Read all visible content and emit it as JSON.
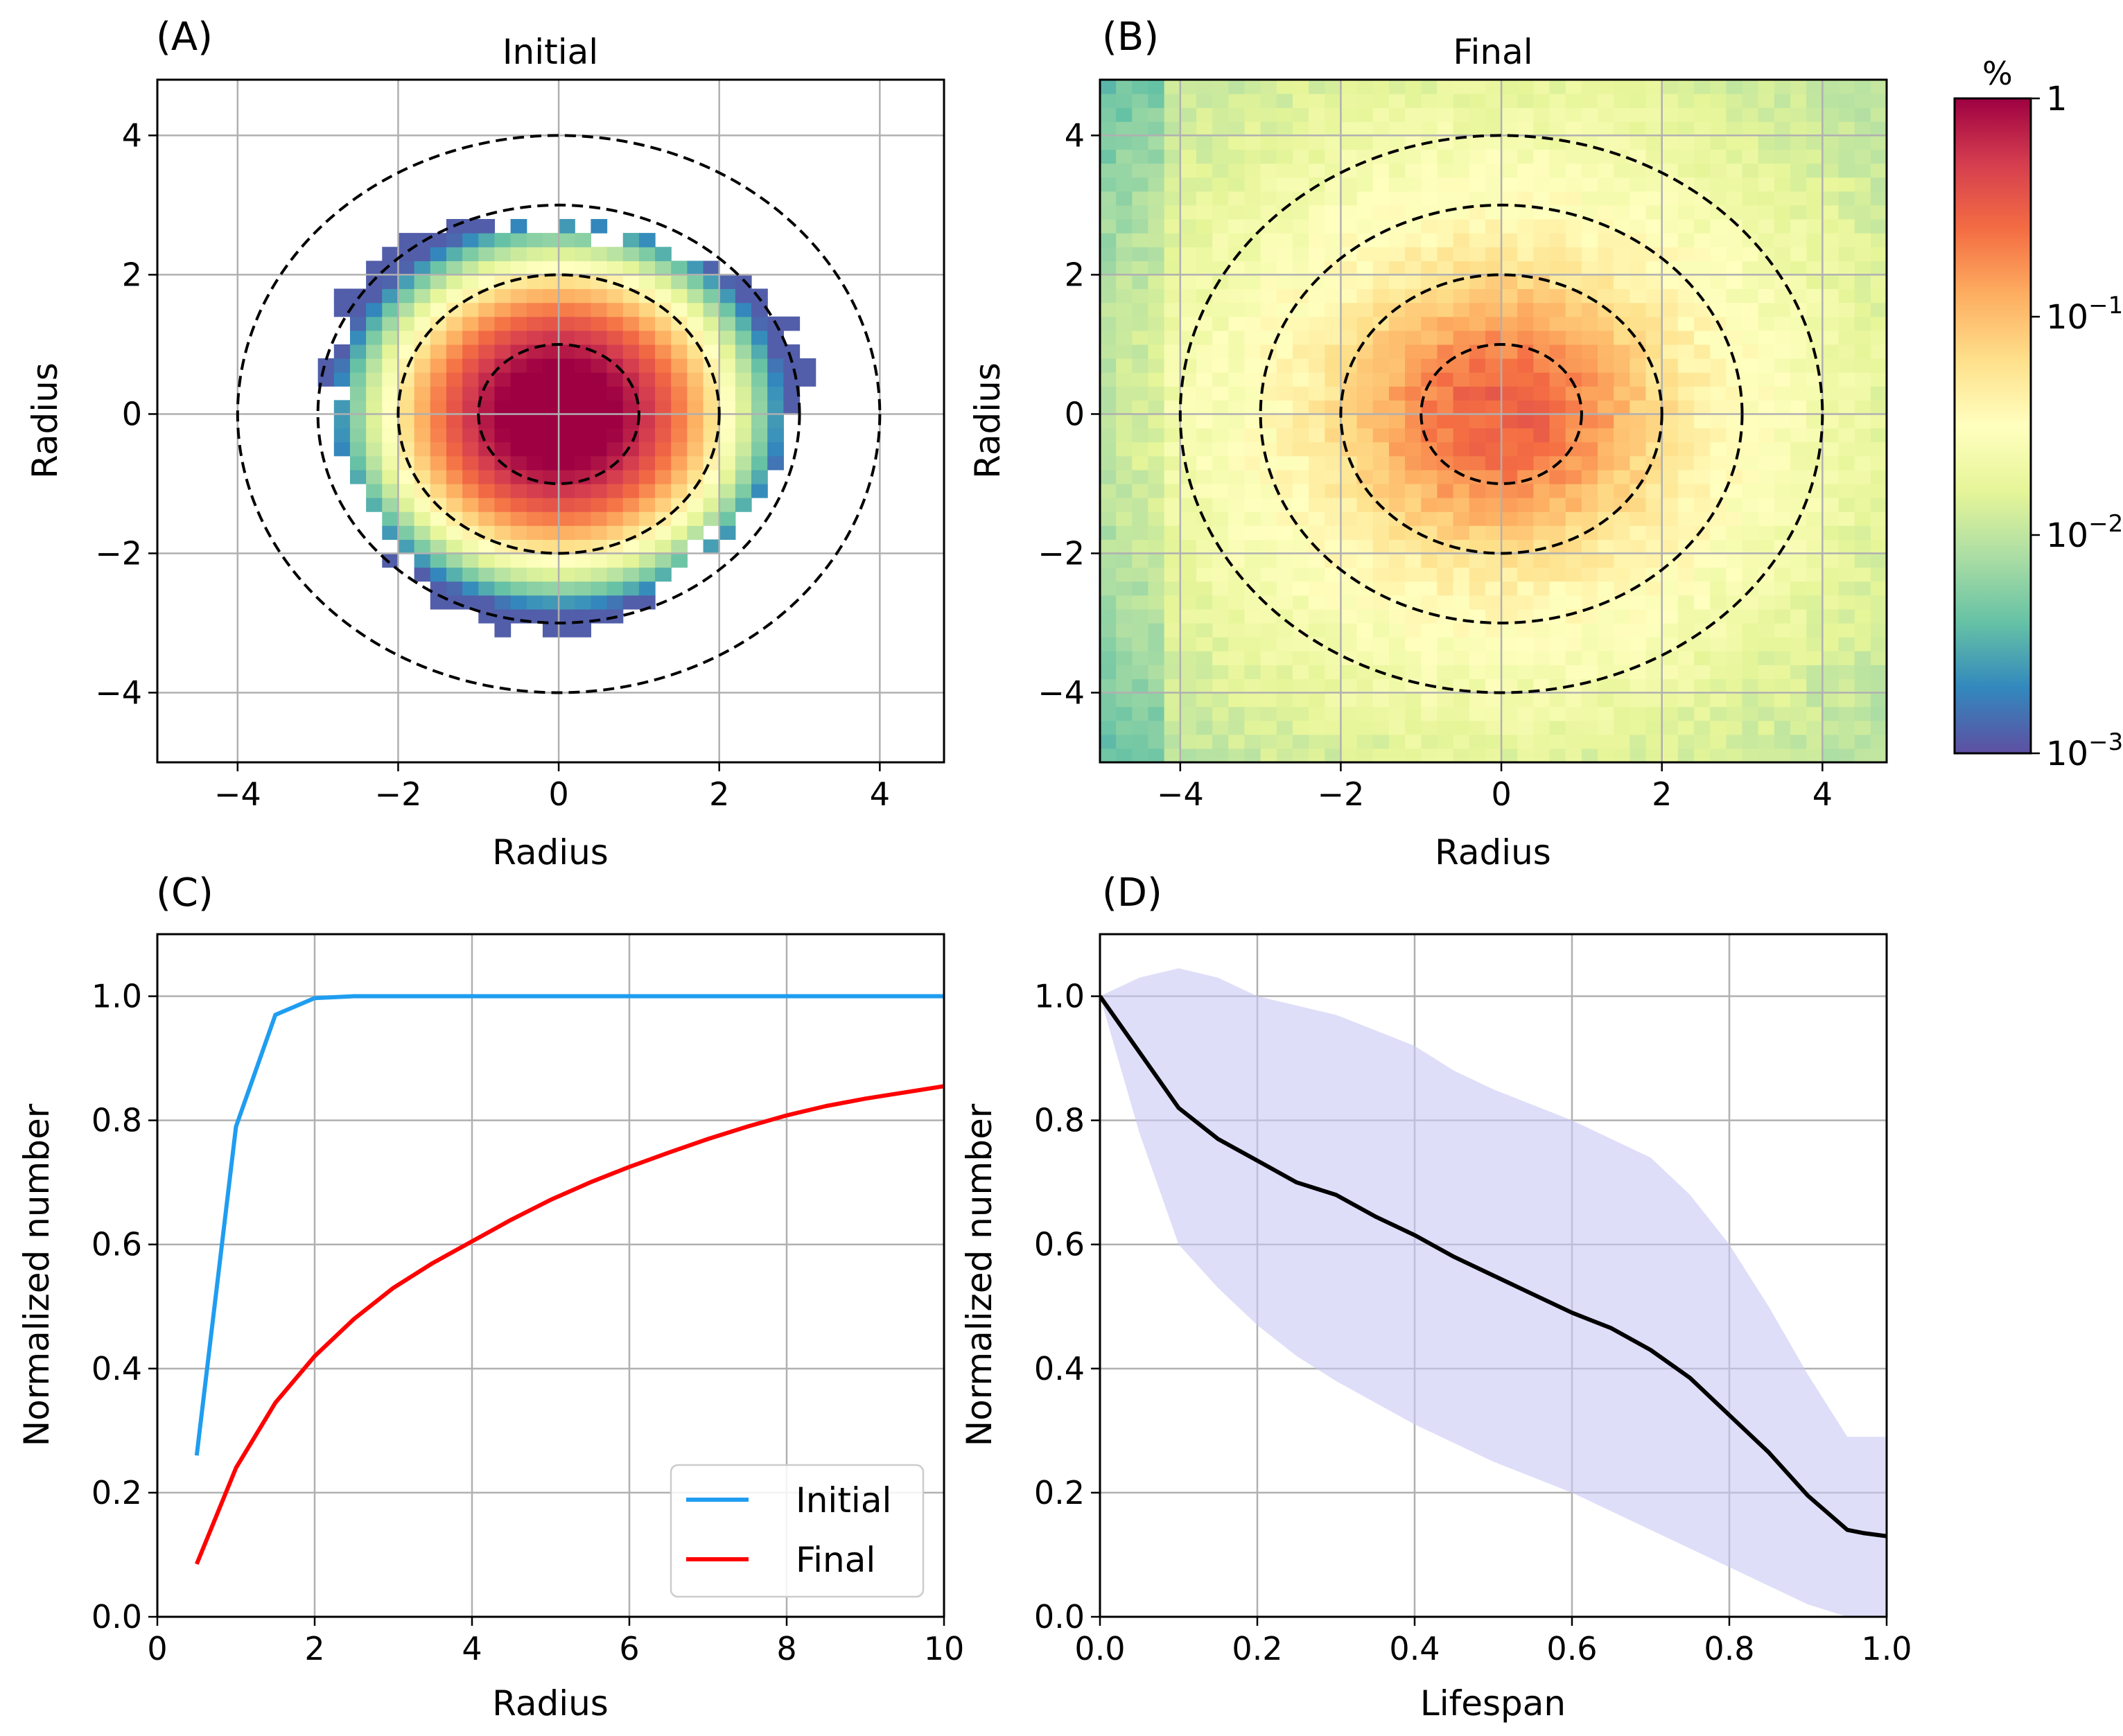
{
  "panels": {
    "A": {
      "letter": "(A)",
      "title": "Initial",
      "xlabel": "Radius",
      "ylabel": "Radius"
    },
    "B": {
      "letter": "(B)",
      "title": "Final",
      "xlabel": "Radius",
      "ylabel": "Radius"
    },
    "C": {
      "letter": "(C)",
      "xlabel": "Radius",
      "ylabel": "Normalized number"
    },
    "D": {
      "letter": "(D)",
      "xlabel": "Lifespan",
      "ylabel": "Normalized number"
    }
  },
  "colorbar": {
    "unit": "%",
    "ticks": [
      {
        "base": "1",
        "exp": ""
      },
      {
        "base": "10",
        "exp": "−1"
      },
      {
        "base": "10",
        "exp": "−2"
      },
      {
        "base": "10",
        "exp": "−3"
      }
    ],
    "colormap": "Spectral_r",
    "colors": [
      "#5e4fa2",
      "#3288bd",
      "#66c2a5",
      "#abdda4",
      "#e6f598",
      "#ffffbf",
      "#fee08b",
      "#fdae61",
      "#f46d43",
      "#d53e4f",
      "#9e0142"
    ]
  },
  "chart_data": [
    {
      "id": "A",
      "type": "heatmap",
      "title": "Initial",
      "xlabel": "Radius",
      "ylabel": "Radius",
      "xlim": [
        -5,
        4.8
      ],
      "ylim": [
        -5,
        4.8
      ],
      "xticks": [
        -4,
        -2,
        0,
        2,
        4
      ],
      "yticks": [
        -4,
        -2,
        0,
        2,
        4
      ],
      "xtick_labels": [
        "−4",
        "−2",
        "0",
        "2",
        "4"
      ],
      "ytick_labels": [
        "−4",
        "−2",
        "0",
        "2",
        "4"
      ],
      "grid": true,
      "color_scale": "log",
      "color_range_percent": [
        0.001,
        1
      ],
      "distribution": {
        "shape": "gaussian",
        "center": [
          0,
          0
        ],
        "sigma": 0.75,
        "peak_percent": 1,
        "support_radius": 2.9
      },
      "reference_circles_radius": [
        1,
        2,
        3,
        4
      ]
    },
    {
      "id": "B",
      "type": "heatmap",
      "title": "Final",
      "xlabel": "Radius",
      "ylabel": "Radius",
      "xlim": [
        -5,
        4.8
      ],
      "ylim": [
        -5,
        4.8
      ],
      "xticks": [
        -4,
        -2,
        0,
        2,
        4
      ],
      "yticks": [
        -4,
        -2,
        0,
        2,
        4
      ],
      "xtick_labels": [
        "−4",
        "−2",
        "0",
        "2",
        "4"
      ],
      "ytick_labels": [
        "−4",
        "−2",
        "0",
        "2",
        "4"
      ],
      "grid": true,
      "color_scale": "log",
      "color_range_percent": [
        0.001,
        1
      ],
      "distribution": {
        "shape": "gaussian-core-with-wide-halo",
        "center": [
          0,
          0
        ],
        "peak_percent": 0.3,
        "halo_percent": 0.01
      },
      "reference_circles_radius": [
        1,
        2,
        3,
        4
      ]
    },
    {
      "id": "C",
      "type": "line",
      "xlabel": "Radius",
      "ylabel": "Normalized number",
      "xlim": [
        0,
        10
      ],
      "ylim": [
        0,
        1.1
      ],
      "xticks": [
        0,
        2,
        4,
        6,
        8,
        10
      ],
      "yticks": [
        0.0,
        0.2,
        0.4,
        0.6,
        0.8,
        1.0
      ],
      "xtick_labels": [
        "0",
        "2",
        "4",
        "6",
        "8",
        "10"
      ],
      "ytick_labels": [
        "0.0",
        "0.2",
        "0.4",
        "0.6",
        "0.8",
        "1.0"
      ],
      "grid": true,
      "legend_position": "bottom-right",
      "series": [
        {
          "name": "Initial",
          "color": "#1f9df0",
          "x": [
            0.5,
            1.0,
            1.5,
            2.0,
            2.5,
            3,
            4,
            5,
            6,
            7,
            8,
            9,
            10
          ],
          "y": [
            0.26,
            0.79,
            0.97,
            0.997,
            1.0,
            1.0,
            1.0,
            1.0,
            1.0,
            1.0,
            1.0,
            1.0,
            1.0
          ]
        },
        {
          "name": "Final",
          "color": "#ff0000",
          "x": [
            0.5,
            1.0,
            1.5,
            2.0,
            2.5,
            3.0,
            3.5,
            4.0,
            4.5,
            5.0,
            5.5,
            6.0,
            6.5,
            7.0,
            7.5,
            8.0,
            8.5,
            9.0,
            9.5,
            10.0
          ],
          "y": [
            0.085,
            0.24,
            0.345,
            0.42,
            0.48,
            0.53,
            0.57,
            0.605,
            0.64,
            0.672,
            0.7,
            0.725,
            0.748,
            0.77,
            0.79,
            0.808,
            0.823,
            0.835,
            0.845,
            0.855
          ]
        }
      ]
    },
    {
      "id": "D",
      "type": "area",
      "xlabel": "Lifespan",
      "ylabel": "Normalized number",
      "xlim": [
        0,
        1
      ],
      "ylim": [
        0,
        1.1
      ],
      "xticks": [
        0.0,
        0.2,
        0.4,
        0.6,
        0.8,
        1.0
      ],
      "yticks": [
        0.0,
        0.2,
        0.4,
        0.6,
        0.8,
        1.0
      ],
      "xtick_labels": [
        "0.0",
        "0.2",
        "0.4",
        "0.6",
        "0.8",
        "1.0"
      ],
      "ytick_labels": [
        "0.0",
        "0.2",
        "0.4",
        "0.6",
        "0.8",
        "1.0"
      ],
      "grid": true,
      "mean": {
        "color": "#000000",
        "x": [
          0.0,
          0.05,
          0.1,
          0.15,
          0.2,
          0.25,
          0.3,
          0.35,
          0.4,
          0.45,
          0.5,
          0.55,
          0.6,
          0.65,
          0.7,
          0.75,
          0.8,
          0.85,
          0.9,
          0.95,
          0.97,
          1.0
        ],
        "y": [
          1.0,
          0.91,
          0.82,
          0.77,
          0.735,
          0.7,
          0.68,
          0.645,
          0.615,
          0.58,
          0.55,
          0.52,
          0.49,
          0.465,
          0.43,
          0.385,
          0.325,
          0.265,
          0.195,
          0.14,
          0.135,
          0.13
        ]
      },
      "band": {
        "color": "#c8c8f5",
        "x": [
          0.0,
          0.05,
          0.1,
          0.15,
          0.2,
          0.25,
          0.3,
          0.35,
          0.4,
          0.45,
          0.5,
          0.55,
          0.6,
          0.65,
          0.7,
          0.75,
          0.8,
          0.85,
          0.9,
          0.95,
          0.97,
          1.0
        ],
        "upper": [
          1.0,
          1.03,
          1.045,
          1.03,
          1.0,
          0.985,
          0.97,
          0.945,
          0.92,
          0.88,
          0.85,
          0.825,
          0.8,
          0.77,
          0.74,
          0.68,
          0.6,
          0.5,
          0.39,
          0.29,
          0.29,
          0.29
        ],
        "lower": [
          1.0,
          0.78,
          0.6,
          0.53,
          0.47,
          0.42,
          0.38,
          0.345,
          0.31,
          0.28,
          0.25,
          0.225,
          0.2,
          0.17,
          0.14,
          0.11,
          0.08,
          0.05,
          0.02,
          0.0,
          0.0,
          0.0
        ]
      }
    }
  ]
}
